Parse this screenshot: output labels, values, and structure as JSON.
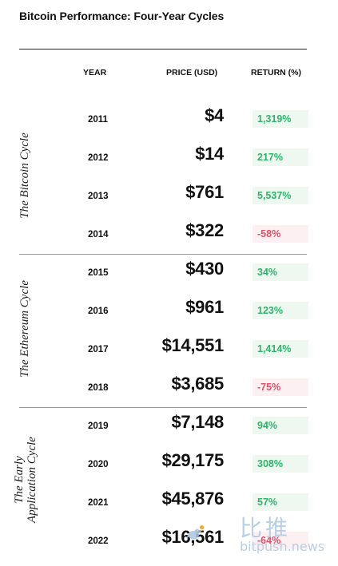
{
  "title": "Bitcoin Performance: Four-Year Cycles",
  "headers": {
    "year": "YEAR",
    "price": "PRICE (USD)",
    "return": "RETURN (%)"
  },
  "cycles": [
    {
      "label": "The Bitcoin Cycle"
    },
    {
      "label": "The Ethereum Cycle"
    },
    {
      "label_line1": "The Early",
      "label_line2": "Application Cycle"
    }
  ],
  "chart_data": {
    "type": "table",
    "title": "Bitcoin Performance: Four-Year Cycles",
    "columns": [
      "YEAR",
      "PRICE (USD)",
      "RETURN (%)"
    ],
    "rows": [
      {
        "year": "2011",
        "price": "$4",
        "return": "1,319%",
        "sign": "pos"
      },
      {
        "year": "2012",
        "price": "$14",
        "return": "217%",
        "sign": "pos"
      },
      {
        "year": "2013",
        "price": "$761",
        "return": "5,537%",
        "sign": "pos"
      },
      {
        "year": "2014",
        "price": "$322",
        "return": "-58%",
        "sign": "neg"
      },
      {
        "year": "2015",
        "price": "$430",
        "return": "34%",
        "sign": "pos"
      },
      {
        "year": "2016",
        "price": "$961",
        "return": "123%",
        "sign": "pos"
      },
      {
        "year": "2017",
        "price": "$14,551",
        "return": "1,414%",
        "sign": "pos"
      },
      {
        "year": "2018",
        "price": "$3,685",
        "return": "-75%",
        "sign": "neg"
      },
      {
        "year": "2019",
        "price": "$7,148",
        "return": "94%",
        "sign": "pos"
      },
      {
        "year": "2020",
        "price": "$29,175",
        "return": "308%",
        "sign": "pos"
      },
      {
        "year": "2021",
        "price": "$45,876",
        "return": "57%",
        "sign": "pos"
      },
      {
        "year": "2022",
        "price": "$16,561",
        "return": "-64%",
        "sign": "neg"
      }
    ]
  },
  "colors": {
    "positive": "#2fb36b",
    "negative": "#e05069",
    "watermark": "#b9cfe3"
  },
  "watermark": {
    "cn": "比推",
    "en": "bitpush.news",
    "icon": "bird-logo-icon"
  }
}
